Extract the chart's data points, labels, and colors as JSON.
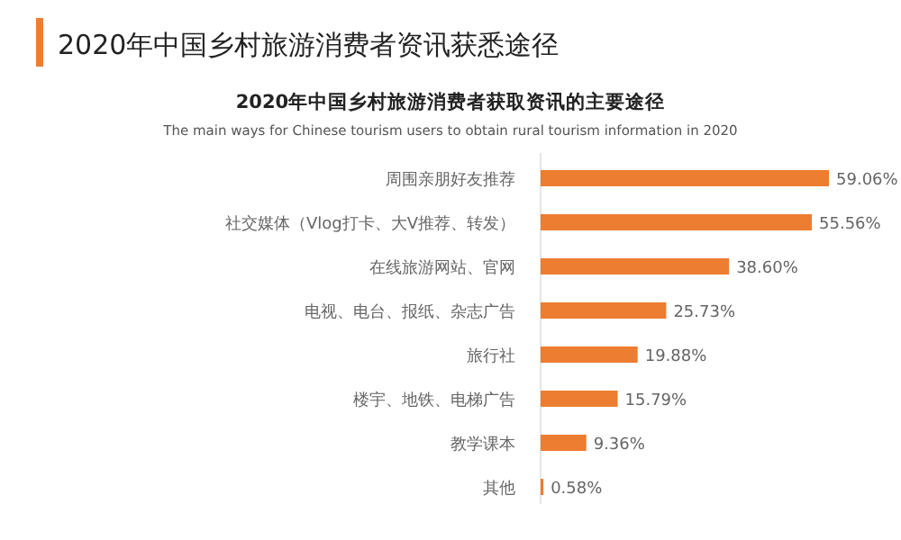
{
  "chart_data": {
    "type": "bar",
    "orientation": "horizontal",
    "title": "2020年中国乡村旅游消费者资讯获悉途径",
    "subtitle": "2020年中国乡村旅游消费者获取资讯的主要途径",
    "annotations": [
      "The main ways for Chinese tourism users to obtain rural tourism information in 2020"
    ],
    "categories": [
      "周围亲朋好友推荐",
      "社交媒体（Vlog打卡、大V推荐、转发）",
      "在线旅游网站、官网",
      "电视、电台、报纸、杂志广告",
      "旅行社",
      "楼宇、地铁、电梯广告",
      "教学课本",
      "其他"
    ],
    "values": [
      59.06,
      55.56,
      38.6,
      25.73,
      19.88,
      15.79,
      9.36,
      0.58
    ],
    "value_labels": [
      "59.06%",
      "55.56%",
      "38.60%",
      "25.73%",
      "19.88%",
      "15.79%",
      "9.36%",
      "0.58%"
    ],
    "color": "#ed7d31"
  }
}
